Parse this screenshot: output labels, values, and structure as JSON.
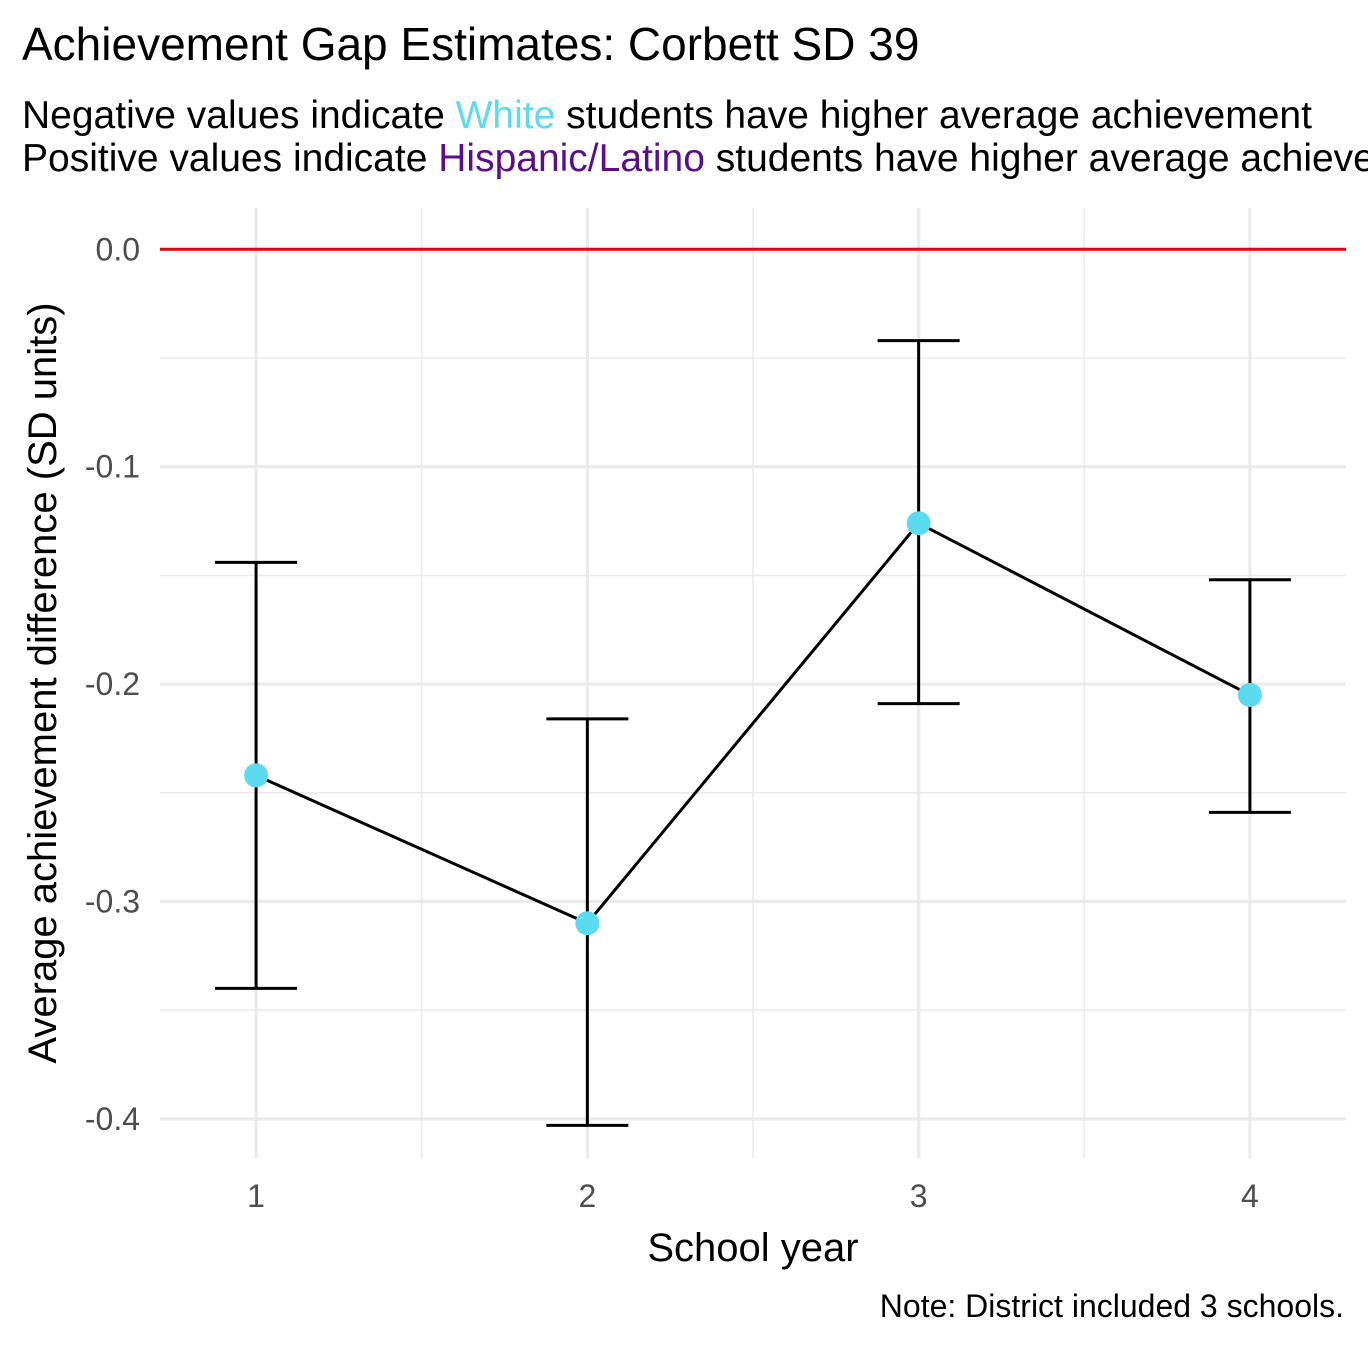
{
  "chart_data": {
    "type": "line",
    "title": "Achievement Gap Estimates: Corbett SD 39",
    "subtitle": {
      "line1": {
        "prefix": "Negative values indicate ",
        "group": "White",
        "suffix": " students have higher average achievement"
      },
      "line2": {
        "prefix": "Positive values indicate ",
        "group": "Hispanic/Latino",
        "suffix": " students have higher average achievement"
      }
    },
    "xlabel": "School year",
    "ylabel": "Average achievement difference (SD units)",
    "caption": "Note: District included 3 schools.",
    "x": [
      1,
      2,
      3,
      4
    ],
    "x_tick_labels": [
      "1",
      "2",
      "3",
      "4"
    ],
    "xlim": [
      0.71,
      4.29
    ],
    "y_ticks": [
      0.0,
      -0.1,
      -0.2,
      -0.3,
      -0.4
    ],
    "y_tick_labels": [
      "0.0",
      "-0.1",
      "-0.2",
      "-0.3",
      "-0.4"
    ],
    "ylim": [
      -0.418,
      0.019
    ],
    "reference_line": 0.0,
    "grid": true,
    "series": [
      {
        "values": [
          -0.242,
          -0.31,
          -0.126,
          -0.205
        ],
        "lower": [
          -0.34,
          -0.403,
          -0.209,
          -0.259
        ],
        "upper": [
          -0.144,
          -0.216,
          -0.042,
          -0.152
        ]
      }
    ],
    "colors": {
      "point": "#5BDBF0",
      "line": "#000000",
      "error_bar": "#000000",
      "reference_line": "#E8000B",
      "white_group": "#5BDBF0",
      "hispanic_group": "#5B0E8C",
      "grid": "#EBEBEB",
      "tick_text": "#4D4D4D"
    }
  }
}
